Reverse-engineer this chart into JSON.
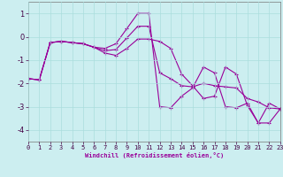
{
  "xlabel": "Windchill (Refroidissement éolien,°C)",
  "ylabel": "",
  "bg_color": "#cceef0",
  "line_color": "#990099",
  "grid_color": "#aadddd",
  "hours": [
    0,
    1,
    2,
    3,
    4,
    5,
    6,
    7,
    8,
    9,
    10,
    11,
    12,
    13,
    14,
    15,
    16,
    17,
    18,
    19,
    20,
    21,
    22,
    23
  ],
  "line_max": [
    -1.8,
    -1.85,
    -0.25,
    -0.2,
    -0.25,
    -0.3,
    -0.45,
    -0.5,
    -0.3,
    0.35,
    1.0,
    1.0,
    -3.0,
    -3.05,
    -2.55,
    -2.2,
    -1.3,
    -1.55,
    -3.0,
    -3.05,
    -2.85,
    -3.7,
    -2.85,
    -3.1
  ],
  "line_mid": [
    -1.8,
    -1.85,
    -0.25,
    -0.2,
    -0.25,
    -0.3,
    -0.45,
    -0.6,
    -0.55,
    -0.05,
    0.45,
    0.45,
    -1.55,
    -1.8,
    -2.1,
    -2.15,
    -2.0,
    -2.1,
    -2.15,
    -2.2,
    -2.65,
    -2.8,
    -3.05,
    -3.1
  ],
  "line_min": [
    -1.8,
    -1.85,
    -0.25,
    -0.2,
    -0.25,
    -0.3,
    -0.45,
    -0.7,
    -0.8,
    -0.5,
    -0.1,
    -0.1,
    -0.2,
    -0.5,
    -1.6,
    -2.1,
    -2.65,
    -2.55,
    -1.3,
    -1.6,
    -2.95,
    -3.7,
    -3.7,
    -3.1
  ],
  "yticks": [
    -4,
    -3,
    -2,
    -1,
    0,
    1
  ],
  "xlim": [
    0,
    23
  ],
  "ylim": [
    -4.5,
    1.5
  ],
  "tick_fontsize": 5,
  "xlabel_fontsize": 5,
  "marker_size": 2.5,
  "linewidth": 0.8
}
